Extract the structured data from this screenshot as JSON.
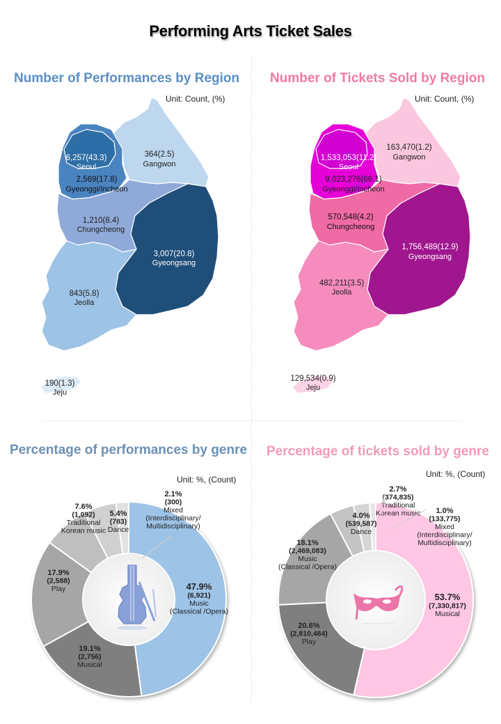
{
  "main_title": "Performing Arts Ticket Sales",
  "chart_data": [
    {
      "type": "map",
      "title": "Number of Performances by Region",
      "unit": "Unit: Count, (%)",
      "regions": [
        {
          "name": "Seoul",
          "value": "6,257(43.3)",
          "count": 6257,
          "pct": 43.3,
          "color": "#2e6ea6"
        },
        {
          "name": "Gyeonggi/Incheon",
          "value": "2,569(17.8)",
          "count": 2569,
          "pct": 17.8,
          "color": "#4a84c0"
        },
        {
          "name": "Gangwon",
          "value": "364(2.5)",
          "count": 364,
          "pct": 2.5,
          "color": "#bdd7ee"
        },
        {
          "name": "Chungcheong",
          "value": "1,210(8.4)",
          "count": 1210,
          "pct": 8.4,
          "color": "#8fa9d9"
        },
        {
          "name": "Gyeongsang",
          "value": "3,007(20.8)",
          "count": 3007,
          "pct": 20.8,
          "color": "#1f4e79"
        },
        {
          "name": "Jeolla",
          "value": "843(5.8)",
          "count": 843,
          "pct": 5.8,
          "color": "#9dc3e6"
        },
        {
          "name": "Jeju",
          "value": "190(1.3)",
          "count": 190,
          "pct": 1.3,
          "color": "#ddebf7"
        }
      ]
    },
    {
      "type": "map",
      "title": "Number of Tickets Sold by Region",
      "unit": "Unit: Count, (%)",
      "regions": [
        {
          "name": "Seoul",
          "value": "1,533,053(11.2)",
          "count": 1533053,
          "pct": 11.2,
          "color": "#d100d1"
        },
        {
          "name": "Gyeonggi/Incheon",
          "value": "9,023,276(66.1)",
          "count": 9023276,
          "pct": 66.1,
          "color": "#e600d8"
        },
        {
          "name": "Gangwon",
          "value": "163,470(1.2)",
          "count": 163470,
          "pct": 1.2,
          "color": "#fbc7df"
        },
        {
          "name": "Chungcheong",
          "value": "570,548(4.2)",
          "count": 570548,
          "pct": 4.2,
          "color": "#f06aa6"
        },
        {
          "name": "Gyeongsang",
          "value": "1,756,489(12.9)",
          "count": 1756489,
          "pct": 12.9,
          "color": "#a0168e"
        },
        {
          "name": "Jeolla",
          "value": "482,211(3.5)",
          "count": 482211,
          "pct": 3.5,
          "color": "#f58cbd"
        },
        {
          "name": "Jeju",
          "value": "129,534(0.9)",
          "count": 129534,
          "pct": 0.9,
          "color": "#fbd3e6"
        }
      ]
    },
    {
      "type": "pie",
      "variant": "donut",
      "title": "Percentage of performances by genre",
      "unit": "Unit: %, (Count)",
      "slices": [
        {
          "pct": "47.9%",
          "count": "(6,921)",
          "label": [
            "Music",
            "(Classical /Opera)"
          ],
          "value": 47.9,
          "color": "#9dc3e6"
        },
        {
          "pct": "19.1%",
          "count": "(2,756)",
          "label": [
            "Musical"
          ],
          "value": 19.1,
          "color": "#7f7f7f"
        },
        {
          "pct": "17.9%",
          "count": "(2,588)",
          "label": [
            "Play"
          ],
          "value": 17.9,
          "color": "#a6a6a6"
        },
        {
          "pct": "7.6%",
          "count": "(1,092)",
          "label": [
            "Traditional",
            "Korean music"
          ],
          "value": 7.6,
          "color": "#bfbfbf"
        },
        {
          "pct": "5.4%",
          "count": "(783)",
          "label": [
            "Dance"
          ],
          "value": 5.4,
          "color": "#d0d0d0"
        },
        {
          "pct": "2.1%",
          "count": "(300)",
          "label": [
            "Mixed",
            "(Interdisciplinary/",
            "Multidisciplinary)"
          ],
          "value": 2.1,
          "color": "#e2e2e2"
        }
      ]
    },
    {
      "type": "pie",
      "variant": "donut",
      "title": "Percentage of tickets sold by genre",
      "unit": "Unit: %, (Count)",
      "slices": [
        {
          "pct": "53.7%",
          "count": "(7,330,817)",
          "label": [
            "Musical"
          ],
          "value": 53.7,
          "color": "#ffc7e3"
        },
        {
          "pct": "20.6%",
          "count": "(2,810,484)",
          "label": [
            "Play"
          ],
          "value": 20.6,
          "color": "#7f7f7f"
        },
        {
          "pct": "18.1%",
          "count": "(2,469,083)",
          "label": [
            "Music",
            "(Classical /Opera)"
          ],
          "value": 18.1,
          "color": "#a6a6a6"
        },
        {
          "pct": "4.0%",
          "count": "(539,587)",
          "label": [
            "Dance"
          ],
          "value": 4.0,
          "color": "#c4c4c4"
        },
        {
          "pct": "2.7%",
          "count": "(374,835)",
          "label": [
            "Traditional",
            "Korean music"
          ],
          "value": 2.7,
          "color": "#d6d6d6"
        },
        {
          "pct": "1.0%",
          "count": "(133,775)",
          "label": [
            "Mixed",
            "(Interdisciplinary/",
            "Multidisciplinary)"
          ],
          "value": 1.0,
          "color": "#e6e6e6"
        }
      ]
    }
  ]
}
